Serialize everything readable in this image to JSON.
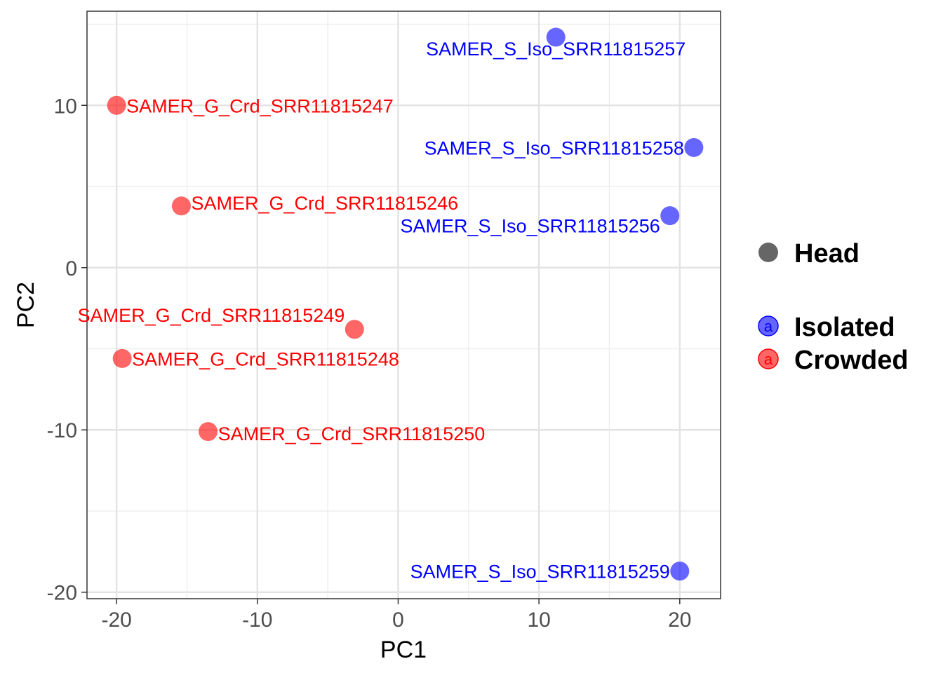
{
  "chart_data": {
    "type": "scatter",
    "title": "",
    "xlabel": "PC1",
    "ylabel": "PC2",
    "xlim": [
      -22.1,
      22.9
    ],
    "ylim": [
      -20.4,
      15.8
    ],
    "xticks": [
      -20,
      -10,
      0,
      10,
      20
    ],
    "yticks": [
      -20,
      -10,
      0,
      10
    ],
    "xtick_labels": [
      "-20",
      "-10",
      "0",
      "10",
      "20"
    ],
    "ytick_labels": [
      "-20",
      "-10",
      "0",
      "10"
    ],
    "grid": true,
    "legend_position": "right",
    "shape_legend": [
      {
        "label": "Head",
        "color": "#666666"
      }
    ],
    "color_legend": [
      {
        "label": "Isolated",
        "color": "#0000ff",
        "glyph": "a"
      },
      {
        "label": "Crowded",
        "color": "#ff0000",
        "glyph": "a"
      }
    ],
    "series": [
      {
        "name": "Isolated",
        "color": "#0000ff",
        "points": [
          {
            "x": 11.2,
            "y": 14.2,
            "label": "SAMER_S_Iso_SRR11815257",
            "label_align": "center",
            "label_dy": -0.7
          },
          {
            "x": 21.0,
            "y": 7.4,
            "label": "SAMER_S_Iso_SRR11815258",
            "label_align": "end",
            "label_dy": 0
          },
          {
            "x": 19.3,
            "y": 3.2,
            "label": "SAMER_S_Iso_SRR11815256",
            "label_align": "end",
            "label_dy": -0.6
          },
          {
            "x": 20.0,
            "y": -18.7,
            "label": "SAMER_S_Iso_SRR11815259",
            "label_align": "end",
            "label_dy": 0
          }
        ]
      },
      {
        "name": "Crowded",
        "color": "#ff0000",
        "points": [
          {
            "x": -20.0,
            "y": 10.0,
            "label": "SAMER_G_Crd_SRR11815247",
            "label_align": "start",
            "label_dy": 0
          },
          {
            "x": -15.4,
            "y": 3.8,
            "label": "SAMER_G_Crd_SRR11815246",
            "label_align": "start",
            "label_dy": 0.2
          },
          {
            "x": -3.1,
            "y": -3.8,
            "label": "SAMER_G_Crd_SRR11815249",
            "label_align": "end",
            "label_dy": 0.9
          },
          {
            "x": -19.6,
            "y": -5.6,
            "label": "SAMER_G_Crd_SRR11815248",
            "label_align": "start",
            "label_dy": 0
          },
          {
            "x": -13.5,
            "y": -10.1,
            "label": "SAMER_G_Crd_SRR11815250",
            "label_align": "start",
            "label_dy": -0.1
          }
        ]
      }
    ]
  }
}
